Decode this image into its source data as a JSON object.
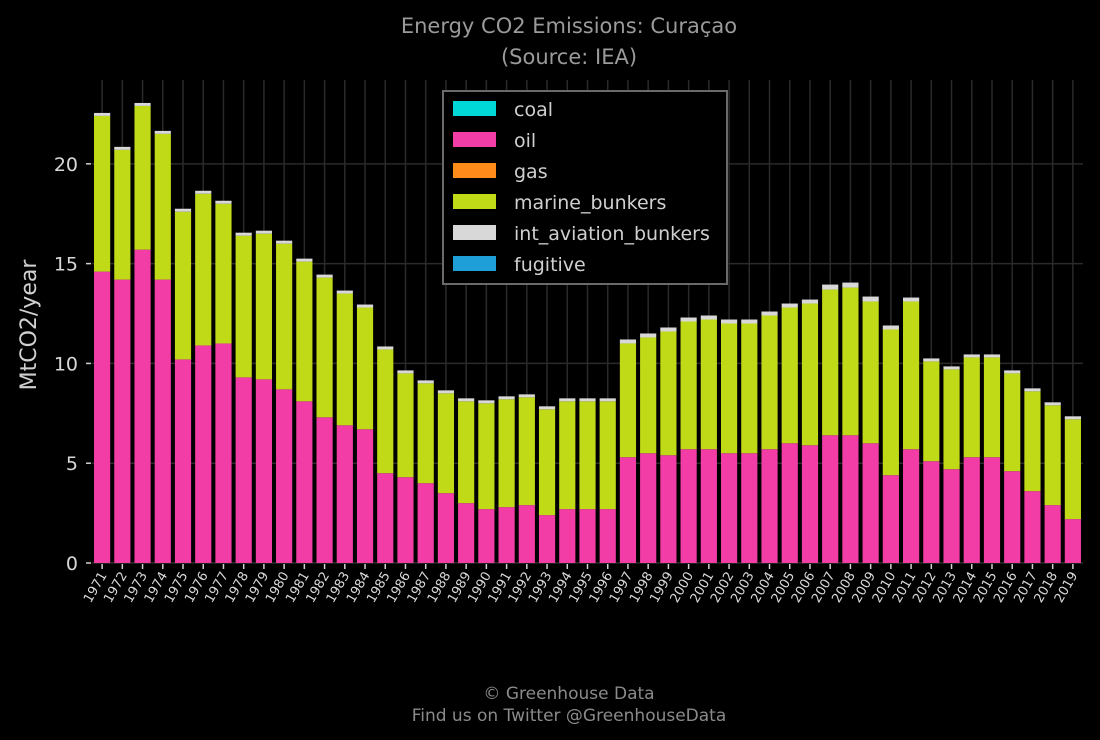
{
  "chart_data": {
    "type": "bar",
    "stacked": true,
    "title": "Energy CO2 Emissions: Curaçao",
    "subtitle": "(Source: IEA)",
    "ylabel": "MtCO2/year",
    "xlabel": "",
    "ylim": [
      0,
      24.2
    ],
    "yticks": [
      0,
      5,
      10,
      15,
      20
    ],
    "grid": true,
    "legend_position": "top-center",
    "categories": [
      "1971",
      "1972",
      "1973",
      "1974",
      "1975",
      "1976",
      "1977",
      "1978",
      "1979",
      "1980",
      "1981",
      "1982",
      "1983",
      "1984",
      "1985",
      "1986",
      "1987",
      "1988",
      "1989",
      "1990",
      "1991",
      "1992",
      "1993",
      "1994",
      "1995",
      "1996",
      "1997",
      "1998",
      "1999",
      "2000",
      "2001",
      "2002",
      "2003",
      "2004",
      "2005",
      "2006",
      "2007",
      "2008",
      "2009",
      "2010",
      "2011",
      "2012",
      "2013",
      "2014",
      "2015",
      "2016",
      "2017",
      "2018",
      "2019"
    ],
    "series": [
      {
        "name": "coal",
        "color": "#00d7d7",
        "values": [
          0,
          0,
          0,
          0,
          0,
          0,
          0,
          0,
          0,
          0,
          0,
          0,
          0,
          0,
          0,
          0,
          0,
          0,
          0,
          0,
          0,
          0,
          0,
          0,
          0,
          0,
          0,
          0,
          0,
          0,
          0,
          0,
          0,
          0,
          0,
          0,
          0,
          0,
          0,
          0,
          0,
          0,
          0,
          0,
          0,
          0,
          0,
          0,
          0
        ]
      },
      {
        "name": "oil",
        "color": "#f23ca6",
        "values": [
          14.6,
          14.2,
          15.7,
          14.2,
          10.2,
          10.9,
          11.0,
          9.3,
          9.2,
          8.7,
          8.1,
          7.3,
          6.9,
          6.7,
          4.5,
          4.3,
          4.0,
          3.5,
          3.0,
          2.7,
          2.8,
          2.9,
          2.4,
          2.7,
          2.7,
          2.7,
          5.3,
          5.5,
          5.4,
          5.7,
          5.7,
          5.5,
          5.5,
          5.7,
          6.0,
          5.9,
          6.4,
          6.4,
          6.0,
          4.4,
          5.7,
          5.1,
          4.7,
          5.3,
          5.3,
          4.6,
          3.6,
          2.9,
          2.2
        ]
      },
      {
        "name": "gas",
        "color": "#ff8c1a",
        "values": [
          0,
          0,
          0,
          0,
          0,
          0,
          0,
          0,
          0,
          0,
          0,
          0,
          0,
          0,
          0,
          0,
          0,
          0,
          0,
          0,
          0,
          0,
          0,
          0,
          0,
          0,
          0,
          0,
          0,
          0,
          0,
          0,
          0,
          0,
          0,
          0,
          0,
          0,
          0,
          0,
          0,
          0,
          0,
          0,
          0,
          0,
          0,
          0,
          0
        ]
      },
      {
        "name": "marine_bunkers",
        "color": "#c1da17",
        "values": [
          7.8,
          6.5,
          7.2,
          7.3,
          7.4,
          7.6,
          7.0,
          7.1,
          7.3,
          7.3,
          7.0,
          7.0,
          6.6,
          6.1,
          6.2,
          5.2,
          5.0,
          5.0,
          5.1,
          5.3,
          5.4,
          5.4,
          5.3,
          5.4,
          5.4,
          5.4,
          5.7,
          5.8,
          6.2,
          6.4,
          6.5,
          6.5,
          6.5,
          6.7,
          6.8,
          7.1,
          7.3,
          7.4,
          7.1,
          7.3,
          7.4,
          5.0,
          5.0,
          5.0,
          5.0,
          4.9,
          5.0,
          5.0,
          5.0
        ]
      },
      {
        "name": "int_aviation_bunkers",
        "color": "#d8d8d8",
        "values": [
          0.15,
          0.15,
          0.15,
          0.15,
          0.15,
          0.15,
          0.15,
          0.15,
          0.15,
          0.15,
          0.15,
          0.15,
          0.15,
          0.15,
          0.15,
          0.15,
          0.15,
          0.15,
          0.15,
          0.15,
          0.15,
          0.15,
          0.15,
          0.15,
          0.15,
          0.15,
          0.2,
          0.2,
          0.2,
          0.2,
          0.2,
          0.2,
          0.2,
          0.2,
          0.2,
          0.2,
          0.25,
          0.25,
          0.25,
          0.2,
          0.2,
          0.15,
          0.15,
          0.15,
          0.15,
          0.15,
          0.15,
          0.15,
          0.15
        ]
      },
      {
        "name": "fugitive",
        "color": "#1f9fd8",
        "values": [
          0,
          0,
          0,
          0,
          0,
          0,
          0,
          0,
          0,
          0,
          0,
          0,
          0,
          0,
          0,
          0,
          0,
          0,
          0,
          0,
          0,
          0,
          0,
          0,
          0,
          0,
          0,
          0,
          0,
          0,
          0,
          0,
          0,
          0,
          0,
          0,
          0,
          0,
          0,
          0,
          0,
          0,
          0,
          0,
          0,
          0,
          0,
          0,
          0
        ]
      }
    ]
  },
  "footer": {
    "line1": "© Greenhouse Data",
    "line2": "Find us on Twitter @GreenhouseData"
  }
}
